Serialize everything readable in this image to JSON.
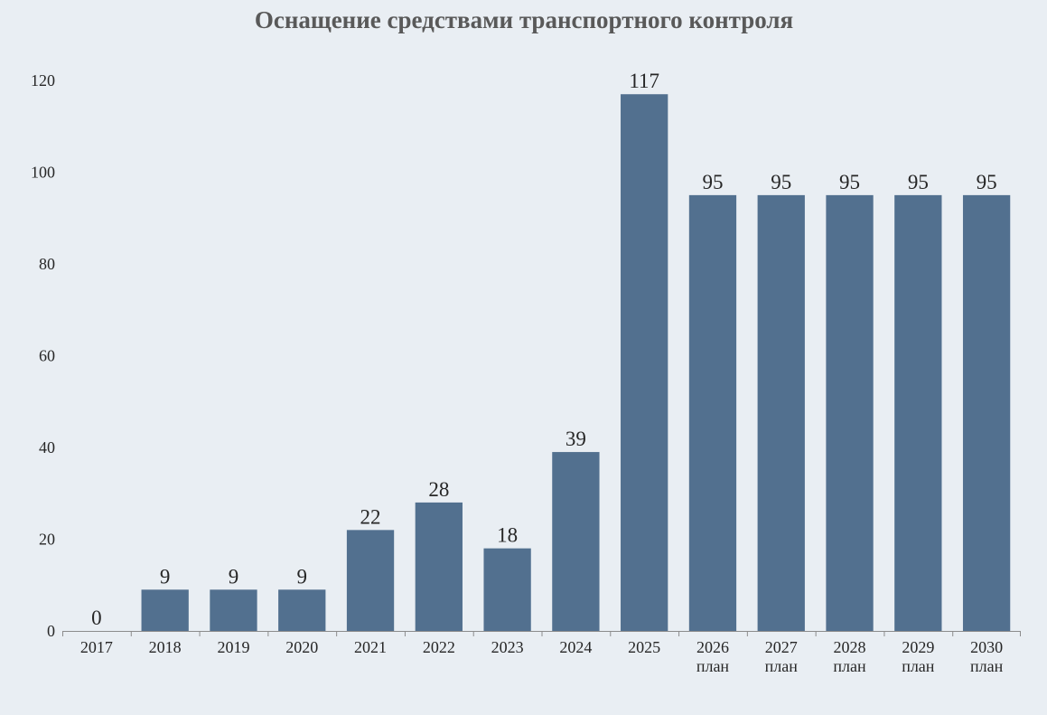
{
  "chart_data": {
    "type": "bar",
    "title": "Оснащение средствами транспортного контроля",
    "xlabel": "",
    "ylabel": "",
    "categories": [
      [
        "2017"
      ],
      [
        "2018"
      ],
      [
        "2019"
      ],
      [
        "2020"
      ],
      [
        "2021"
      ],
      [
        "2022"
      ],
      [
        "2023"
      ],
      [
        "2024"
      ],
      [
        "2025"
      ],
      [
        "2026",
        "план"
      ],
      [
        "2027",
        "план"
      ],
      [
        "2028",
        "план"
      ],
      [
        "2029",
        "план"
      ],
      [
        "2030",
        "план"
      ]
    ],
    "values": [
      0,
      9,
      9,
      9,
      22,
      28,
      18,
      39,
      117,
      95,
      95,
      95,
      95,
      95
    ],
    "data_labels": [
      "0",
      "9",
      "9",
      "9",
      "22",
      "28",
      "18",
      "39",
      "117",
      "95",
      "95",
      "95",
      "95",
      "95"
    ],
    "ylim": [
      0,
      120
    ],
    "yticks": [
      0,
      20,
      40,
      60,
      80,
      100,
      120
    ],
    "grid": false,
    "legend": "none",
    "colors": {
      "bar": "#52708f",
      "background": "#e9eef3",
      "axis": "#8c8c8c",
      "text": "#262626",
      "title": "#595959"
    }
  }
}
